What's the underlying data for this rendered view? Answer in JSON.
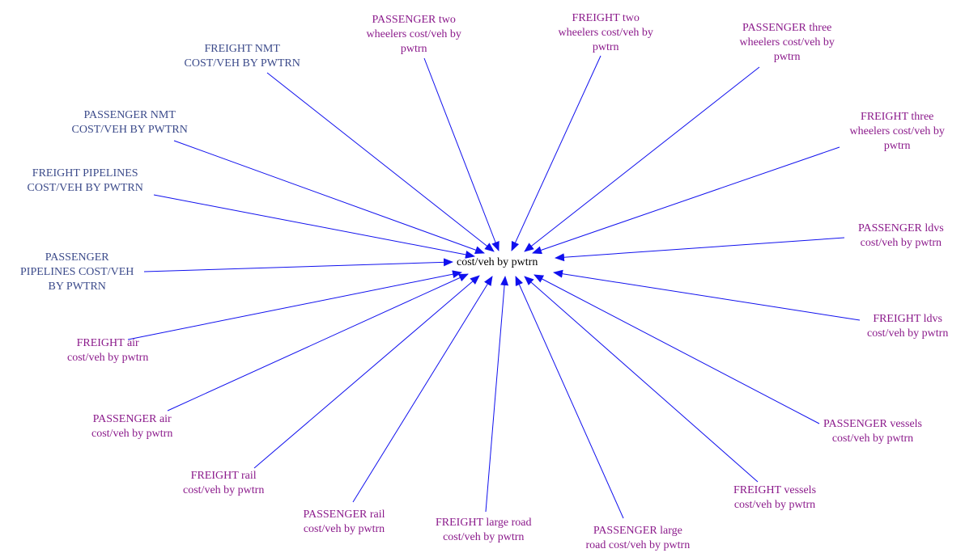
{
  "diagram": {
    "center": {
      "label": "cost/veh by pwtrn"
    },
    "colors": {
      "arrow": "#1010ee",
      "text_upper": "#3b4a8a",
      "text_lower": "#8b1a8b",
      "text_center": "#000000"
    },
    "nodes": [
      {
        "id": "freight-nmt",
        "lines": [
          "FREIGHT NMT",
          "COST/VEH BY PWTRN"
        ],
        "color": "#3b4a8a"
      },
      {
        "id": "passenger-two-wheelers",
        "lines": [
          "PASSENGER two",
          "wheelers cost/veh by",
          "pwtrn"
        ],
        "color": "#8b1a8b"
      },
      {
        "id": "freight-two-wheelers",
        "lines": [
          "FREIGHT two",
          "wheelers cost/veh by",
          "pwtrn"
        ],
        "color": "#8b1a8b"
      },
      {
        "id": "passenger-three-wheelers",
        "lines": [
          "PASSENGER three",
          "wheelers cost/veh by",
          "pwtrn"
        ],
        "color": "#8b1a8b"
      },
      {
        "id": "passenger-nmt",
        "lines": [
          "PASSENGER NMT",
          "COST/VEH BY PWTRN"
        ],
        "color": "#3b4a8a"
      },
      {
        "id": "freight-three-wheelers",
        "lines": [
          "FREIGHT three",
          "wheelers cost/veh by",
          "pwtrn"
        ],
        "color": "#8b1a8b"
      },
      {
        "id": "freight-pipelines",
        "lines": [
          "FREIGHT PIPELINES",
          "COST/VEH BY PWTRN"
        ],
        "color": "#3b4a8a"
      },
      {
        "id": "passenger-ldvs",
        "lines": [
          "PASSENGER ldvs",
          "cost/veh by pwtrn"
        ],
        "color": "#8b1a8b"
      },
      {
        "id": "passenger-pipelines",
        "lines": [
          "PASSENGER",
          "PIPELINES COST/VEH",
          "BY PWTRN"
        ],
        "color": "#3b4a8a"
      },
      {
        "id": "freight-ldvs",
        "lines": [
          "FREIGHT ldvs",
          "cost/veh by pwtrn"
        ],
        "color": "#8b1a8b"
      },
      {
        "id": "freight-air",
        "lines": [
          "FREIGHT air",
          "cost/veh by pwtrn"
        ],
        "color": "#8b1a8b"
      },
      {
        "id": "passenger-air",
        "lines": [
          "PASSENGER air",
          "cost/veh by pwtrn"
        ],
        "color": "#8b1a8b"
      },
      {
        "id": "passenger-vessels",
        "lines": [
          "PASSENGER vessels",
          "cost/veh by pwtrn"
        ],
        "color": "#8b1a8b"
      },
      {
        "id": "freight-rail",
        "lines": [
          "FREIGHT rail",
          "cost/veh by pwtrn"
        ],
        "color": "#8b1a8b"
      },
      {
        "id": "freight-vessels",
        "lines": [
          "FREIGHT vessels",
          "cost/veh by pwtrn"
        ],
        "color": "#8b1a8b"
      },
      {
        "id": "passenger-rail",
        "lines": [
          "PASSENGER rail",
          "cost/veh by pwtrn"
        ],
        "color": "#8b1a8b"
      },
      {
        "id": "freight-large-road",
        "lines": [
          "FREIGHT large road",
          "cost/veh by pwtrn"
        ],
        "color": "#8b1a8b"
      },
      {
        "id": "passenger-large-road",
        "lines": [
          "PASSENGER large",
          "road cost/veh by pwtrn"
        ],
        "color": "#8b1a8b"
      }
    ]
  }
}
